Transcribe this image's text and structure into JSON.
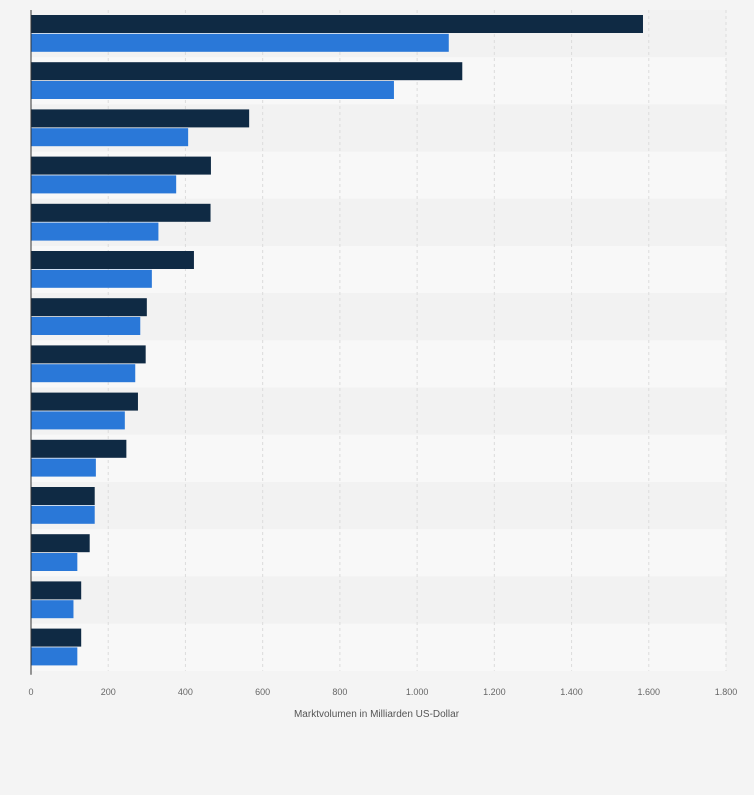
{
  "chart_data": {
    "type": "bar",
    "orientation": "horizontal",
    "categories": [
      "",
      "",
      "",
      "",
      "",
      "",
      "",
      "",
      "",
      "",
      "",
      "",
      "",
      ""
    ],
    "series": [
      {
        "values": [
          1585,
          1117,
          565,
          466,
          465,
          422,
          300,
          297,
          277,
          247,
          165,
          152,
          130,
          130
        ]
      },
      {
        "values": [
          1082,
          940,
          407,
          376,
          330,
          313,
          283,
          270,
          243,
          168,
          165,
          120,
          110,
          120
        ]
      }
    ],
    "colors": [
      "#0f2a44",
      "#2a78d8"
    ],
    "xlabel": "Marktvolumen in Milliarden US-Dollar",
    "xlim": [
      0,
      1800
    ],
    "xticks": [
      0,
      200,
      400,
      600,
      800,
      1000,
      1200,
      1400,
      1600,
      1800
    ],
    "xtick_labels": [
      "0",
      "200",
      "400",
      "600",
      "800",
      "1.000",
      "1.200",
      "1.400",
      "1.600",
      "1.800"
    ],
    "grid": true,
    "legend": "none"
  }
}
